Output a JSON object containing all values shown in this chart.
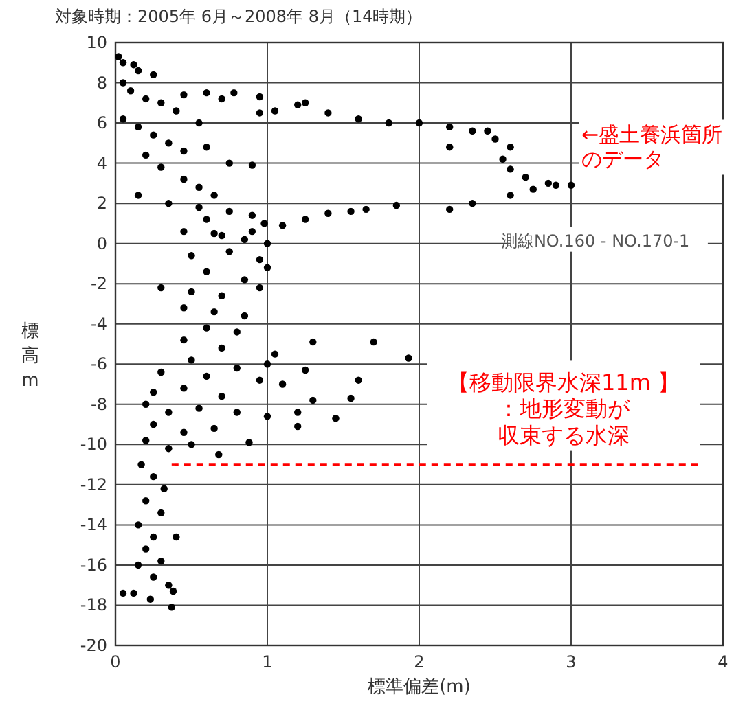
{
  "chart_data": {
    "type": "scatter",
    "title": "対象時期：2005年 6月～2008年 8月（14時期）",
    "xlabel": "標準偏差(m)",
    "ylabel": "標高m",
    "xlim": [
      0,
      4
    ],
    "xticks": [
      0,
      1,
      2,
      3,
      4
    ],
    "ylim": [
      -20,
      10
    ],
    "yticks": [
      -20,
      -18,
      -16,
      -14,
      -12,
      -10,
      -8,
      -6,
      -4,
      -2,
      0,
      2,
      4,
      6,
      8,
      10
    ],
    "grid": true,
    "marker": "circle",
    "annotations": [
      "←盛土養浜箇所のデータ",
      "測線NO.160 - NO.170-1"
    ],
    "ref_lines": [
      {
        "axis": "y",
        "value": -11,
        "label": "【移動限界水深11m 】：地形変動が収束する水深",
        "color": "#ff0000",
        "line_style": "dashed"
      }
    ],
    "series": [
      {
        "color": "#000000",
        "x": [
          0.02,
          0.05,
          0.12,
          0.15,
          0.25,
          0.05,
          0.1,
          0.2,
          0.3,
          0.45,
          0.6,
          0.7,
          0.78,
          0.4,
          0.55,
          0.05,
          0.15,
          0.25,
          0.35,
          0.45,
          0.6,
          0.75,
          0.9,
          0.2,
          0.3,
          0.45,
          0.55,
          0.65,
          0.15,
          0.35,
          0.55,
          0.75,
          0.9,
          0.98,
          0.6,
          0.45,
          0.65,
          0.85,
          1.0,
          0.5,
          0.75,
          0.95,
          0.6,
          0.85,
          1.0,
          0.3,
          0.5,
          0.7,
          0.95,
          0.45,
          0.65,
          0.85,
          0.6,
          0.8,
          0.45,
          0.7,
          0.5,
          0.3,
          0.6,
          0.8,
          0.95,
          0.25,
          0.45,
          0.7,
          0.2,
          0.35,
          0.55,
          0.8,
          1.0,
          0.25,
          0.45,
          0.65,
          0.2,
          0.35,
          0.5,
          0.88,
          0.68,
          0.17,
          0.25,
          0.32,
          0.2,
          0.3,
          0.15,
          0.25,
          0.4,
          0.2,
          0.3,
          0.15,
          0.25,
          0.35,
          0.05,
          0.12,
          0.23,
          0.38,
          0.37,
          1.3,
          1.7,
          1.93,
          1.6,
          1.55,
          1.3,
          1.2,
          1.45,
          1.2,
          1.1,
          1.0,
          1.25,
          1.05,
          0.7,
          0.9,
          1.1,
          1.25,
          1.4,
          1.55,
          1.65,
          1.85,
          2.2,
          2.35,
          2.6,
          2.75,
          2.9,
          3.0,
          2.85,
          2.7,
          2.6,
          2.55,
          2.6,
          2.5,
          2.35,
          2.2,
          2.0,
          1.8,
          1.6,
          1.4,
          1.2,
          1.05,
          0.95,
          0.95,
          1.25,
          2.45,
          2.2
        ],
        "values": [
          9.3,
          9.0,
          8.9,
          8.6,
          8.4,
          8.0,
          7.6,
          7.2,
          7.0,
          7.4,
          7.5,
          7.2,
          7.5,
          6.6,
          6.0,
          6.2,
          5.8,
          5.4,
          5.0,
          4.6,
          4.8,
          4.0,
          3.9,
          4.4,
          3.8,
          3.2,
          2.8,
          2.4,
          2.4,
          2.0,
          1.8,
          1.6,
          1.4,
          1.0,
          1.2,
          0.6,
          0.5,
          0.2,
          0.0,
          -0.6,
          -0.4,
          -0.8,
          -1.4,
          -1.8,
          -1.2,
          -2.2,
          -2.4,
          -2.6,
          -2.2,
          -3.2,
          -3.4,
          -3.6,
          -4.2,
          -4.4,
          -4.8,
          -5.2,
          -5.8,
          -6.4,
          -6.6,
          -6.2,
          -6.8,
          -7.4,
          -7.2,
          -7.6,
          -8.0,
          -8.4,
          -8.2,
          -8.4,
          -8.6,
          -9.0,
          -9.4,
          -9.2,
          -9.8,
          -10.2,
          -10.0,
          -9.9,
          -10.5,
          -11.0,
          -11.6,
          -12.2,
          -12.8,
          -13.4,
          -14.0,
          -14.6,
          -14.6,
          -15.2,
          -15.8,
          -16.0,
          -16.6,
          -17.0,
          -17.4,
          -17.4,
          -17.7,
          -17.3,
          -18.1,
          -4.9,
          -4.9,
          -5.7,
          -6.8,
          -7.7,
          -7.8,
          -8.4,
          -8.7,
          -9.1,
          -7.0,
          -6.0,
          -6.3,
          -5.5,
          0.4,
          0.6,
          0.9,
          1.2,
          1.5,
          1.6,
          1.7,
          1.9,
          1.7,
          2.0,
          2.4,
          2.7,
          2.9,
          2.9,
          3.0,
          3.3,
          3.7,
          4.2,
          4.8,
          5.2,
          5.6,
          5.8,
          6.0,
          6.0,
          6.2,
          6.5,
          6.9,
          6.6,
          6.5,
          7.3,
          7.0,
          5.6,
          4.8
        ]
      }
    ]
  }
}
